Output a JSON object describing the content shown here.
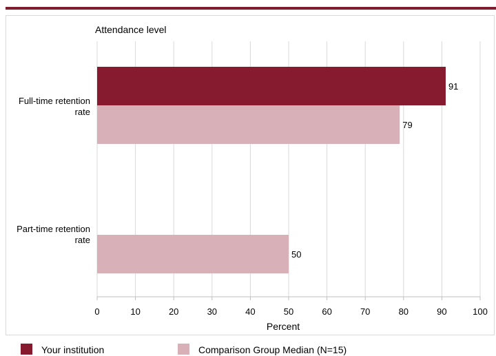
{
  "chart_data": {
    "type": "bar",
    "orientation": "horizontal",
    "title": "Attendance level",
    "xlabel": "Percent",
    "xlim": [
      0,
      100
    ],
    "xticks": [
      0,
      10,
      20,
      30,
      40,
      50,
      60,
      70,
      80,
      90,
      100
    ],
    "grid": true,
    "legend_placement": "bottom",
    "categories": [
      [
        "Full-time retention",
        "rate"
      ],
      [
        "Part-time retention",
        "rate"
      ]
    ],
    "series": [
      {
        "name": "Your institution",
        "values": [
          91,
          null
        ],
        "color": "#861a2f",
        "data_labels": [
          "91",
          null
        ]
      },
      {
        "name": "Comparison Group Median (N=15)",
        "values": [
          79,
          50
        ],
        "color": "#d8b1b8",
        "data_labels": [
          "79",
          "50"
        ]
      }
    ]
  }
}
